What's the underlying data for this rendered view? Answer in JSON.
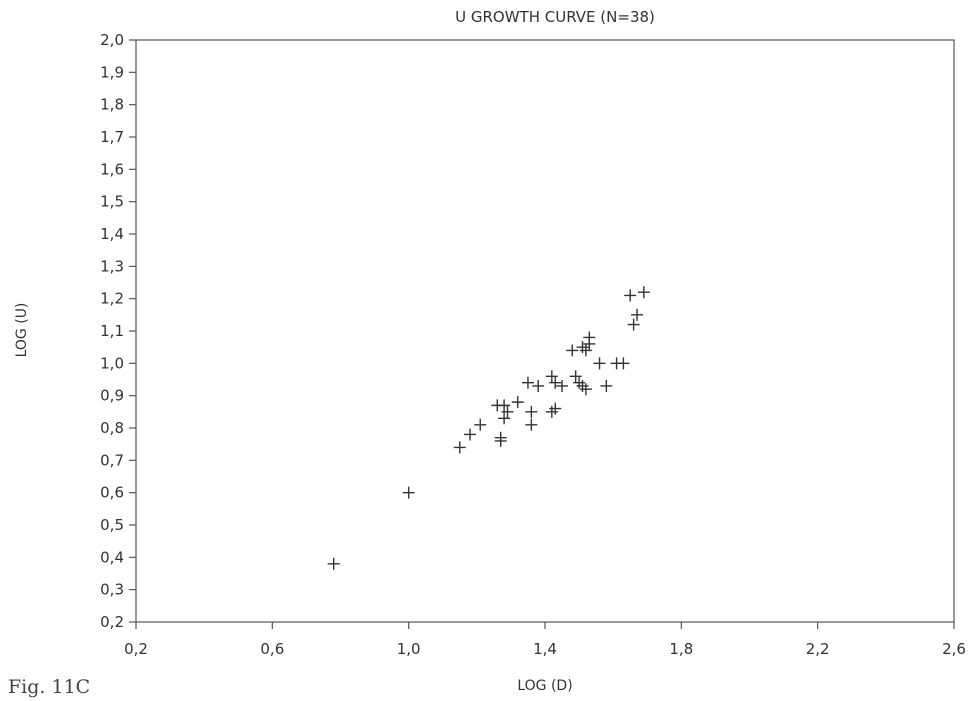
{
  "figure_label": "Fig. 11C",
  "chart_data": {
    "type": "scatter",
    "title": "U  GROWTH CURVE  (N=38)",
    "xlabel": "LOG (D)",
    "ylabel": "LOG (U)",
    "xlim": [
      0.2,
      2.6
    ],
    "ylim": [
      0.2,
      2.0
    ],
    "xticks": [
      0.2,
      0.6,
      1.0,
      1.4,
      1.8,
      2.2,
      2.6
    ],
    "xtick_labels": [
      "0,2",
      "0,6",
      "1,0",
      "1,4",
      "1,8",
      "2,2",
      "2,6"
    ],
    "yticks": [
      0.2,
      0.3,
      0.4,
      0.5,
      0.6,
      0.7,
      0.8,
      0.9,
      1.0,
      1.1,
      1.2,
      1.3,
      1.4,
      1.5,
      1.6,
      1.7,
      1.8,
      1.9,
      2.0
    ],
    "ytick_labels": [
      "0,2",
      "0,3",
      "0,4",
      "0,5",
      "0,6",
      "0,7",
      "0,8",
      "0,9",
      "1,0",
      "1,1",
      "1,2",
      "1,3",
      "1,4",
      "1,5",
      "1,6",
      "1,7",
      "1,8",
      "1,9",
      "2,0"
    ],
    "grid": false,
    "marker": "+",
    "x": [
      0.78,
      1.0,
      1.15,
      1.18,
      1.21,
      1.26,
      1.27,
      1.27,
      1.28,
      1.28,
      1.29,
      1.32,
      1.35,
      1.36,
      1.36,
      1.38,
      1.42,
      1.42,
      1.43,
      1.43,
      1.45,
      1.48,
      1.49,
      1.5,
      1.51,
      1.51,
      1.52,
      1.52,
      1.53,
      1.53,
      1.56,
      1.58,
      1.61,
      1.63,
      1.65,
      1.66,
      1.67,
      1.69
    ],
    "y": [
      0.38,
      0.6,
      0.74,
      0.78,
      0.81,
      0.87,
      0.77,
      0.76,
      0.83,
      0.87,
      0.85,
      0.88,
      0.94,
      0.81,
      0.85,
      0.93,
      0.96,
      0.85,
      0.94,
      0.86,
      0.93,
      1.04,
      0.96,
      0.94,
      1.05,
      0.93,
      0.92,
      1.04,
      1.06,
      1.08,
      1.0,
      0.93,
      1.0,
      1.0,
      1.21,
      1.12,
      1.15,
      1.22
    ]
  }
}
